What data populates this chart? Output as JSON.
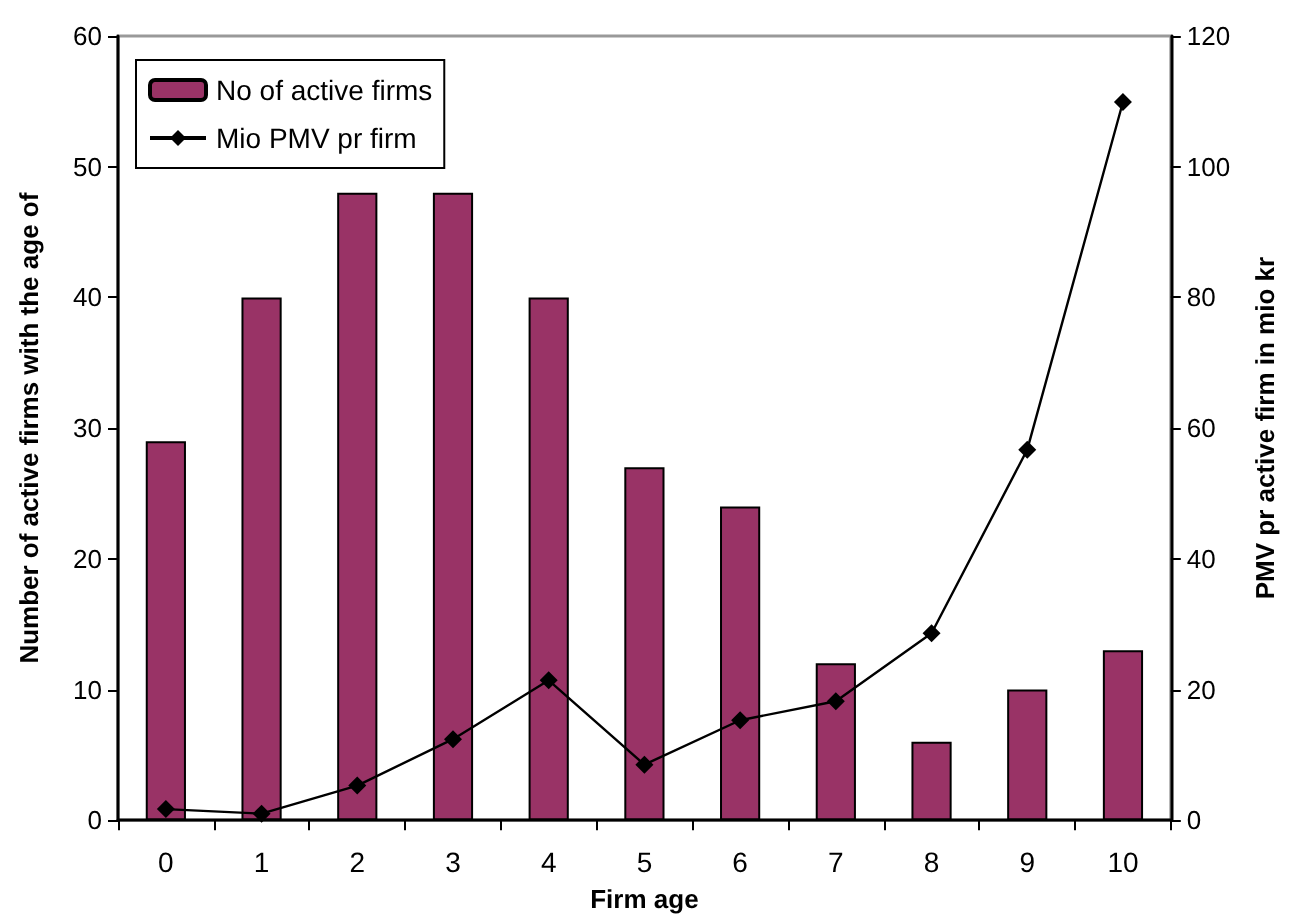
{
  "chart_data": {
    "type": "bar",
    "xlabel": "Firm age",
    "ylabel": "Number of active firms with the age of",
    "y2label": "PMV pr active firm in mio kr",
    "categories": [
      "0",
      "1",
      "2",
      "3",
      "4",
      "5",
      "6",
      "7",
      "8",
      "9",
      "10"
    ],
    "series": [
      {
        "name": "No of active firms",
        "color": "#993366",
        "values": [
          29,
          40,
          48,
          48,
          40,
          27,
          24,
          12,
          6,
          10,
          13
        ]
      },
      {
        "name": "Mio PMV pr firm",
        "type": "line",
        "axis": "y2",
        "color": "#000000",
        "marker": "diamond",
        "values": [
          1.7,
          1.0,
          5.3,
          12.4,
          21.4,
          8.5,
          15.3,
          18.2,
          28.6,
          56.7,
          109.9
        ]
      }
    ],
    "ylim": [
      0,
      60
    ],
    "yticks": [
      0,
      10,
      20,
      30,
      40,
      50,
      60
    ],
    "y2lim": [
      0,
      120
    ],
    "y2ticks": [
      0,
      20,
      40,
      60,
      80,
      100,
      120
    ],
    "grid": false,
    "legend": "top left"
  }
}
